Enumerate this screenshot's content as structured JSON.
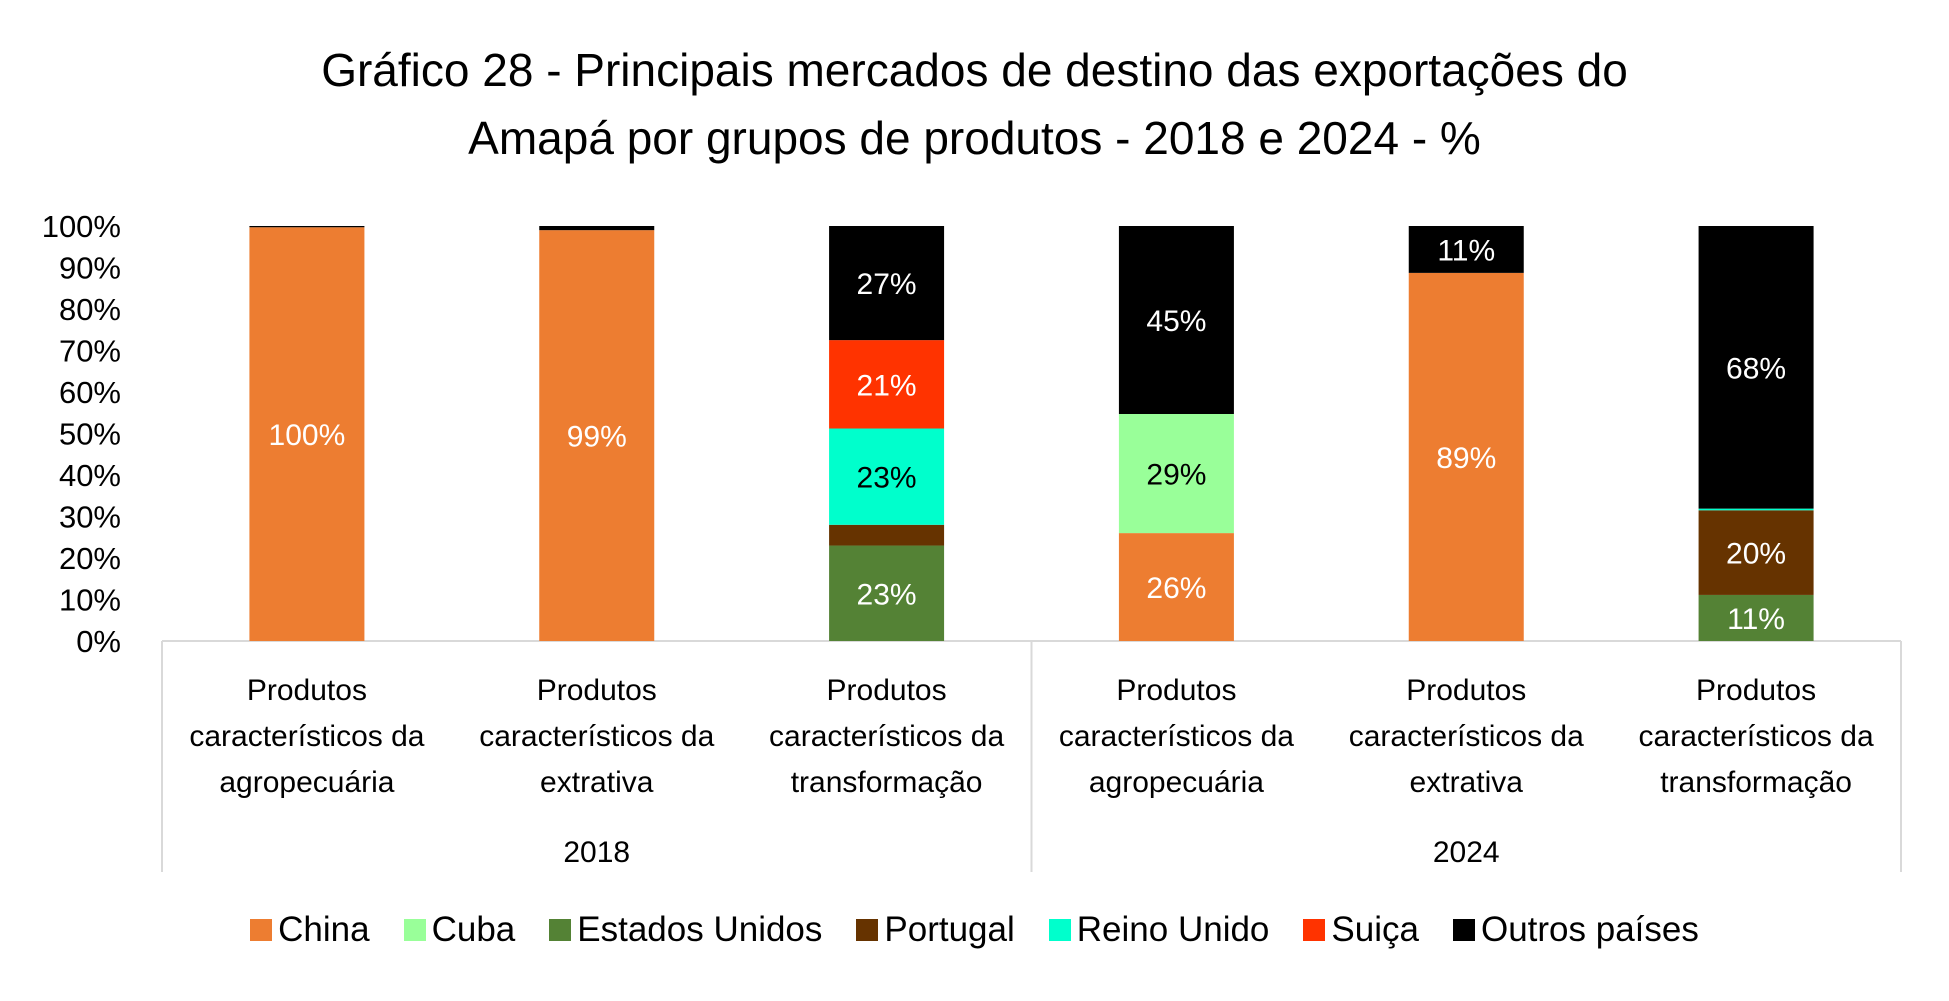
{
  "title_line1": "Gráfico 28 - Principais mercados de destino das exportações do",
  "title_line2": "Amapá por grupos de produtos - 2018 e 2024 - %",
  "chart_data": {
    "type": "bar",
    "stacked": true,
    "percent_stacked": true,
    "title": "Gráfico 28 - Principais mercados de destino das exportações do Amapá por grupos de produtos - 2018 e 2024 - %",
    "xlabel": "",
    "ylabel": "",
    "ylim": [
      0,
      100
    ],
    "yticks": [
      "0%",
      "10%",
      "20%",
      "30%",
      "40%",
      "50%",
      "60%",
      "70%",
      "80%",
      "90%",
      "100%"
    ],
    "grid": false,
    "legend_position": "bottom",
    "groups": [
      {
        "label": "2018",
        "categories": [
          0,
          1,
          2
        ]
      },
      {
        "label": "2024",
        "categories": [
          3,
          4,
          5
        ]
      }
    ],
    "categories": [
      [
        "Produtos",
        "característicos da",
        "agropecuária"
      ],
      [
        "Produtos",
        "característicos da",
        "extrativa"
      ],
      [
        "Produtos",
        "característicos da",
        "transformação"
      ],
      [
        "Produtos",
        "característicos da",
        "agropecuária"
      ],
      [
        "Produtos",
        "característicos da",
        "extrativa"
      ],
      [
        "Produtos",
        "característicos da",
        "transformação"
      ]
    ],
    "series": [
      {
        "name": "China",
        "color": "#ED7D31",
        "label_color": "#FFFFFF",
        "values": [
          99.7,
          99.0,
          0,
          26.0,
          88.7,
          0
        ],
        "labels": [
          "100%",
          "99%",
          "",
          "26%",
          "89%",
          ""
        ]
      },
      {
        "name": "Cuba",
        "color": "#99FF99",
        "label_color": "#000000",
        "values": [
          0,
          0,
          0,
          28.7,
          0,
          0
        ],
        "labels": [
          "",
          "",
          "",
          "29%",
          "",
          ""
        ]
      },
      {
        "name": "Estados Unidos",
        "color": "#548235",
        "label_color": "#FFFFFF",
        "values": [
          0,
          0,
          23.0,
          0,
          0,
          11.1
        ],
        "labels": [
          "",
          "",
          "23%",
          "",
          "",
          "11%"
        ]
      },
      {
        "name": "Portugal",
        "color": "#663300",
        "label_color": "#FFFFFF",
        "values": [
          0,
          0,
          5.0,
          0,
          0,
          20.4
        ],
        "labels": [
          "",
          "",
          "",
          "",
          "",
          "20%"
        ]
      },
      {
        "name": "Reino Unido",
        "color": "#00FFCC",
        "label_color": "#000000",
        "values": [
          0,
          0,
          23.2,
          0,
          0,
          0.4
        ],
        "labels": [
          "",
          "",
          "23%",
          "",
          "",
          ""
        ]
      },
      {
        "name": "Suiça",
        "color": "#FF3300",
        "label_color": "#FFFFFF",
        "values": [
          0,
          0,
          21.3,
          0,
          0,
          0
        ],
        "labels": [
          "",
          "",
          "21%",
          "",
          "",
          ""
        ]
      },
      {
        "name": "Outros países",
        "color": "#000000",
        "label_color": "#FFFFFF",
        "values": [
          0.3,
          1.0,
          27.5,
          45.3,
          11.3,
          68.1
        ],
        "labels": [
          "",
          "",
          "27%",
          "45%",
          "11%",
          "68%"
        ]
      }
    ]
  }
}
